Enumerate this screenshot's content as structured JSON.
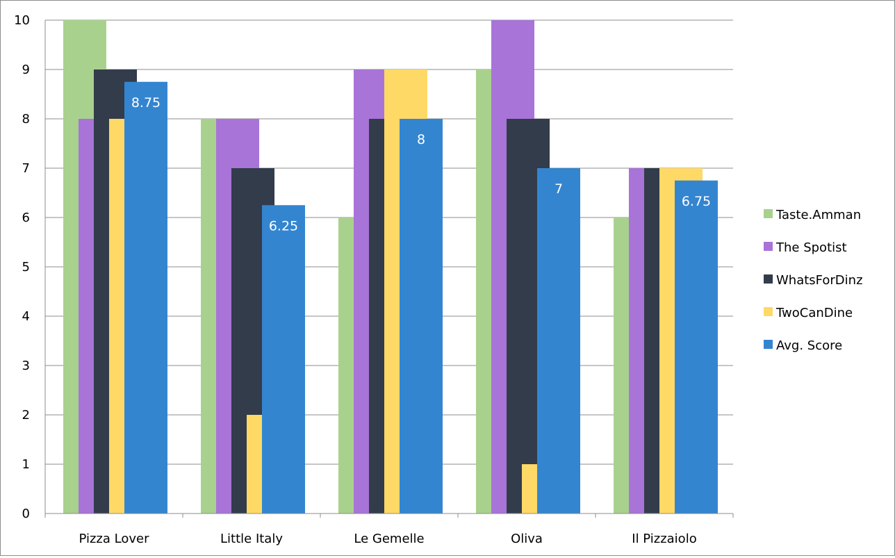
{
  "chart_data": {
    "type": "bar",
    "categories": [
      "Pizza Lover",
      "Little Italy",
      "Le Gemelle",
      "Oliva",
      "Il Pizzaiolo"
    ],
    "series": [
      {
        "name": "Taste.Amman",
        "color": "#a9d18e",
        "values": [
          10,
          8,
          6,
          9,
          6
        ]
      },
      {
        "name": "The Spotist",
        "color": "#a874d8",
        "values": [
          8,
          8,
          9,
          10,
          7
        ]
      },
      {
        "name": "WhatsForDinz",
        "color": "#323c4b",
        "values": [
          9,
          7,
          8,
          8,
          7
        ]
      },
      {
        "name": "TwoCanDine",
        "color": "#ffd966",
        "values": [
          8,
          2,
          9,
          1,
          7
        ]
      },
      {
        "name": "Avg. Score",
        "color": "#3485d0",
        "values": [
          8.75,
          6.25,
          8,
          7,
          6.75
        ],
        "data_labels": [
          "8.75",
          "6.25",
          "8",
          "7",
          "6.75"
        ]
      }
    ],
    "y_ticks": [
      "0",
      "1",
      "2",
      "3",
      "4",
      "5",
      "6",
      "7",
      "8",
      "9",
      "10"
    ],
    "ylim": [
      0,
      10
    ],
    "grid": true,
    "legend_position": "right"
  }
}
